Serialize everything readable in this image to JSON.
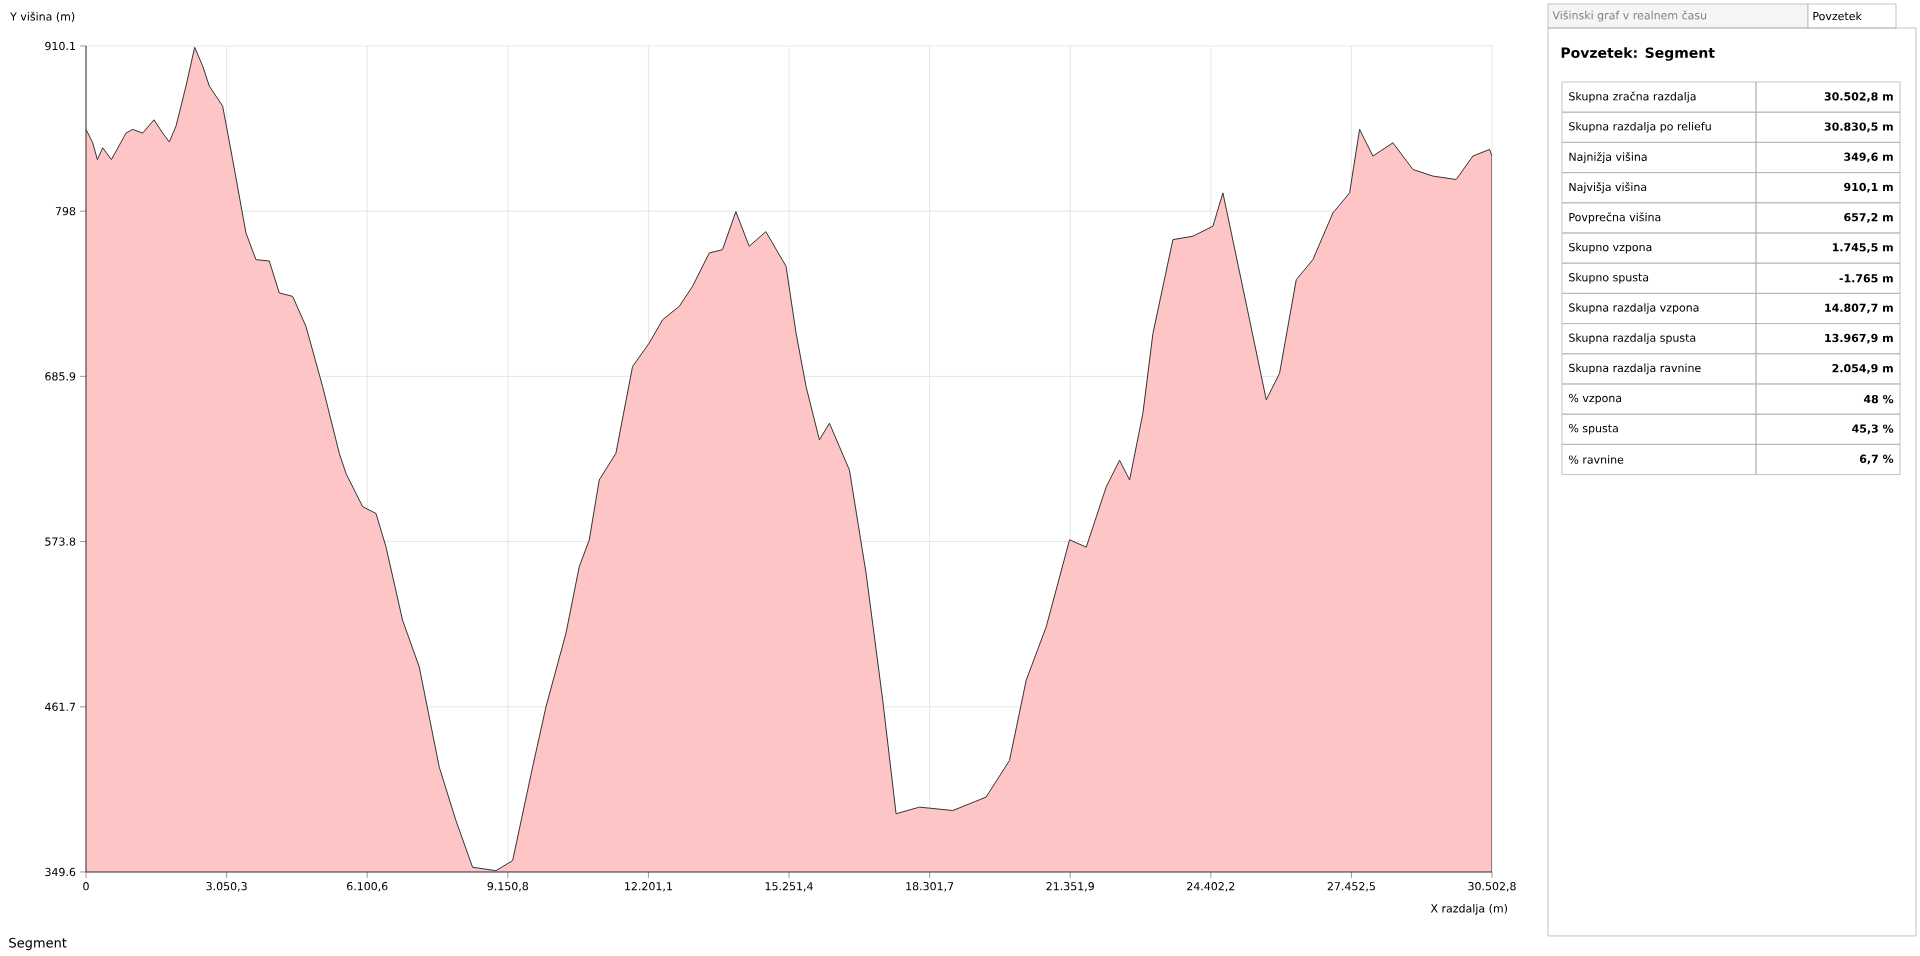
{
  "chart_data": [
    {
      "type": "area",
      "xlabel": "X razdalja (m)",
      "ylabel": "Y višina (m)",
      "xlim": [
        0,
        30502.8
      ],
      "ylim": [
        349.6,
        910.1
      ],
      "xticks": [
        0,
        {
          "value": 3050.3,
          "label": "3.050,3"
        },
        {
          "value": 6100.6,
          "label": "6.100,6"
        },
        {
          "value": 9150.8,
          "label": "9.150,8"
        },
        {
          "value": 12201.1,
          "label": "12.201,1"
        },
        {
          "value": 15251.4,
          "label": "15.251,4"
        },
        {
          "value": 18301.7,
          "label": "18.301,7"
        },
        {
          "value": 21351.9,
          "label": "21.351,9"
        },
        {
          "value": 24402.2,
          "label": "24.402,2"
        },
        {
          "value": 27452.5,
          "label": "27.452,5"
        },
        {
          "value": 30502.8,
          "label": "30.502,8"
        }
      ],
      "yticks": [
        349.6,
        461.7,
        573.8,
        685.9,
        798,
        910.1
      ],
      "grid": true,
      "series": [
        {
          "color": "#fdc5c5",
          "x": [
            0,
            145,
            246,
            361,
            550,
            868,
            1012,
            1229,
            1475,
            1663,
            1807,
            1952,
            2169,
            2357,
            2531,
            2675,
            2964,
            3181,
            3470,
            3687,
            3976,
            4193,
            4482,
            4772,
            5133,
            5495,
            5639,
            6001,
            6290,
            6507,
            6868,
            7230,
            7664,
            8025,
            8387,
            8893,
            9255,
            9688,
            9977,
            10411,
            10700,
            10917,
            11134,
            11496,
            11857,
            12219,
            12508,
            12869,
            13158,
            13520,
            13809,
            14098,
            14387,
            14749,
            15187,
            15404,
            15621,
            15911,
            16128,
            16562,
            16924,
            17285,
            17574,
            18081,
            18804,
            19527,
            20035,
            20397,
            20831,
            21338,
            21700,
            22134,
            22423,
            22640,
            22929,
            23146,
            23580,
            24014,
            24448,
            24665,
            25243,
            25605,
            25894,
            26256,
            26617,
            27051,
            27413,
            27630,
            27919,
            28353,
            28787,
            29221,
            29727,
            30088,
            30450,
            30502.8
          ],
          "values": [
            853.5,
            844.4,
            833,
            841,
            833,
            851,
            853.5,
            851,
            860,
            851,
            845,
            855.7,
            882.9,
            909.2,
            896.5,
            882.9,
            869.3,
            833,
            783.2,
            765.1,
            764.2,
            742.5,
            740.2,
            719.8,
            679,
            633.7,
            620.1,
            597.5,
            592.9,
            570.3,
            520.4,
            488.7,
            420.7,
            384.5,
            352.8,
            350.5,
            357.3,
            420.7,
            461.5,
            511.4,
            556.7,
            574.8,
            615.6,
            633.7,
            692.6,
            708.5,
            724.3,
            733.4,
            747,
            769.6,
            771.9,
            797.7,
            774.2,
            784.1,
            760.6,
            715.3,
            679,
            642.8,
            654.1,
            622.4,
            552.2,
            466.1,
            389.1,
            393.6,
            391.3,
            400.4,
            425.3,
            479.7,
            515.9,
            575,
            570,
            611,
            629,
            615.6,
            660.9,
            715,
            778.7,
            781,
            787.8,
            810.4,
            724.3,
            670,
            688,
            751.5,
            765.1,
            796.8,
            810.4,
            853.5,
            835.4,
            844.4,
            826.3,
            821.8,
            819.5,
            835.4,
            839.9,
            835.4
          ]
        }
      ]
    },
    {
      "type": "other",
      "title": "Povzetek: Segment",
      "annotations": [
        "Višinski graf v realnem času",
        "Povzetek",
        "Segment"
      ],
      "categories": [
        "Skupna zračna razdalja",
        "Skupna razdalja po reliefu",
        "Najnižja višina",
        "Najvišja višina",
        "Povprečna višina",
        "Skupno vzpona",
        "Skupno spusta",
        "Skupna razdalja vzpona",
        "Skupna razdalja spusta",
        "Skupna razdalja ravnine",
        "% vzpona",
        "% spusta",
        "% ravnine"
      ],
      "value_labels": [
        "30.502,8 m",
        "30.830,5 m",
        "349,6 m",
        "910,1 m",
        "657,2 m",
        "1.745,5 m",
        "-1.765 m",
        "14.807,7 m",
        "13.967,9 m",
        "2.054,9 m",
        "48 %",
        "45,3 %",
        "6,7 %"
      ]
    }
  ]
}
